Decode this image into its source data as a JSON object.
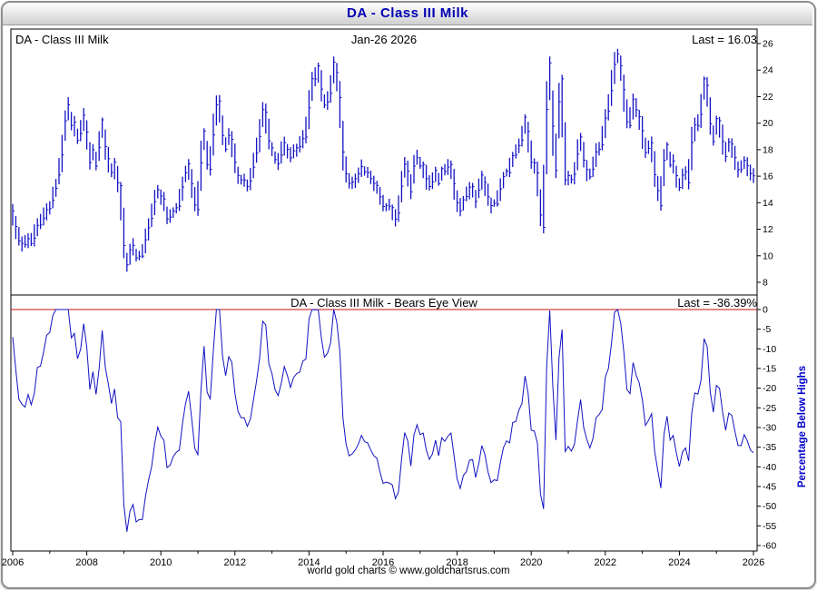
{
  "window": {
    "title": "DA  -  Class III Milk"
  },
  "panels": {
    "price": {
      "label": "DA  -  Class III Milk",
      "date": "Jan-26  2026",
      "last": "Last = 16.03"
    },
    "bears": {
      "title": "DA  -  Class III Milk - Bears Eye View",
      "last": "Last = -36.39%",
      "axis_label": "Percentage Below Highs"
    }
  },
  "footer": {
    "credit": "world gold charts © www.goldchartsrus.com"
  },
  "colors": {
    "series": "#1212c4",
    "zero_line": "#cc1111",
    "title_text": "#0000b4",
    "axis_text": "#000000",
    "frame": "#8f8f8f"
  },
  "chart_data": [
    {
      "type": "bar",
      "title": "DA - Class III Milk",
      "x_unit": "monthly",
      "x_start": 2006.0,
      "x_end": 2026.0,
      "ylim": [
        8,
        26
      ],
      "y_ticks": [
        26,
        24,
        22,
        20,
        18,
        16,
        14,
        12,
        10,
        8
      ],
      "x_ticks": [
        2006,
        2008,
        2010,
        2012,
        2014,
        2016,
        2018,
        2020,
        2022,
        2024,
        2026
      ],
      "last": 16.03,
      "legend_position": "none",
      "grid": false,
      "values": [
        13.39,
        12.2,
        11.11,
        10.93,
        10.83,
        11.29,
        10.92,
        11.33,
        12.29,
        12.32,
        12.84,
        13.47,
        13.56,
        14.18,
        15.09,
        16.09,
        17.6,
        20.17,
        21.38,
        19.83,
        20.07,
        18.7,
        19.22,
        20.6,
        19.32,
        17.03,
        18.0,
        16.76,
        18.18,
        20.25,
        18.24,
        17.32,
        16.28,
        17.06,
        15.51,
        15.28,
        10.78,
        9.31,
        10.44,
        10.78,
        9.84,
        9.97,
        9.97,
        11.2,
        12.11,
        12.82,
        14.08,
        14.98,
        14.5,
        14.28,
        12.78,
        12.92,
        13.38,
        13.62,
        13.74,
        15.18,
        16.26,
        16.94,
        15.44,
        13.83,
        13.48,
        17.0,
        19.4,
        16.87,
        16.52,
        19.11,
        21.39,
        21.67,
        19.07,
        18.03,
        19.07,
        18.77,
        17.05,
        16.06,
        15.72,
        15.72,
        15.23,
        15.63,
        16.68,
        17.73,
        19.0,
        21.02,
        20.83,
        18.66,
        18.14,
        17.25,
        16.93,
        17.59,
        18.52,
        18.02,
        17.38,
        17.91,
        18.14,
        18.22,
        18.83,
        18.95,
        21.15,
        23.35,
        23.33,
        24.31,
        22.57,
        21.36,
        21.6,
        22.25,
        24.6,
        23.82,
        21.94,
        17.82,
        16.18,
        15.46,
        15.56,
        15.81,
        16.19,
        16.72,
        16.33,
        16.27,
        15.82,
        15.46,
        15.3,
        14.44,
        13.72,
        13.8,
        13.74,
        13.63,
        12.76,
        13.22,
        15.24,
        16.91,
        16.39,
        14.82,
        16.76,
        17.4,
        16.77,
        16.88,
        15.81,
        15.22,
        15.57,
        16.44,
        15.45,
        16.57,
        16.36,
        16.69,
        16.88,
        15.44,
        14.0,
        13.4,
        14.22,
        14.47,
        15.18,
        15.21,
        14.1,
        14.95,
        16.09,
        15.53,
        14.44,
        13.78,
        13.96,
        13.89,
        15.04,
        15.96,
        16.38,
        16.27,
        17.55,
        17.6,
        18.31,
        18.72,
        20.45,
        19.37,
        17.05,
        17.0,
        16.25,
        13.07,
        12.14,
        21.04,
        24.54,
        19.77,
        16.43,
        21.61,
        23.34,
        15.72,
        16.04,
        15.75,
        16.15,
        17.67,
        18.96,
        17.21,
        16.49,
        15.95,
        16.53,
        17.83,
        18.03,
        18.36,
        20.38,
        20.91,
        22.45,
        24.42,
        25.21,
        24.33,
        22.52,
        20.1,
        19.82,
        21.81,
        21.01,
        20.5,
        19.43,
        17.78,
        18.1,
        18.52,
        16.11,
        14.91,
        13.77,
        17.19,
        18.39,
        16.84,
        17.15,
        16.04,
        15.15,
        16.08,
        16.34,
        15.5,
        18.55,
        19.87,
        19.79,
        20.66,
        23.34,
        22.85,
        19.95,
        18.62,
        20.34,
        20.18,
        18.62,
        17.48,
        18.57,
        18.42,
        17.4,
        16.5,
        16.5,
        17.2,
        16.8,
        16.2,
        16.03
      ]
    },
    {
      "type": "line",
      "title": "DA - Class III Milk - Bears Eye View",
      "x_unit": "monthly",
      "x_start": 2006.0,
      "x_end": 2026.0,
      "ylim": [
        -60,
        0
      ],
      "ylabel": "Percentage Below Highs",
      "y_ticks": [
        0,
        -5,
        -10,
        -15,
        -20,
        -25,
        -30,
        -35,
        -40,
        -45,
        -50,
        -55,
        -60
      ],
      "x_ticks": [
        2006,
        2008,
        2010,
        2012,
        2014,
        2016,
        2018,
        2020,
        2022,
        2024,
        2026
      ],
      "last_pct": -36.39,
      "zero_line": true,
      "grid": false,
      "values": [
        -7.0,
        -15.3,
        -22.8,
        -24.1,
        -24.8,
        -21.6,
        -24.2,
        -21.3,
        -14.7,
        -14.4,
        -10.8,
        -6.5,
        -5.8,
        -1.5,
        0.0,
        0.0,
        0.0,
        0.0,
        0.0,
        -7.2,
        -6.1,
        -12.5,
        -10.1,
        -3.6,
        -9.6,
        -20.3,
        -15.8,
        -21.6,
        -15.0,
        -5.3,
        -14.7,
        -19.0,
        -23.9,
        -20.2,
        -27.5,
        -28.5,
        -49.6,
        -56.5,
        -51.2,
        -49.6,
        -54.0,
        -53.4,
        -53.4,
        -47.6,
        -43.4,
        -40.0,
        -34.1,
        -29.9,
        -32.2,
        -33.2,
        -40.2,
        -39.6,
        -37.4,
        -36.3,
        -35.7,
        -29.0,
        -23.9,
        -20.8,
        -27.8,
        -35.3,
        -36.9,
        -20.5,
        -9.3,
        -21.1,
        -22.7,
        -10.6,
        0.0,
        0.0,
        -12.0,
        -16.8,
        -12.0,
        -13.4,
        -21.3,
        -25.9,
        -27.5,
        -27.5,
        -29.7,
        -27.9,
        -23.0,
        -18.2,
        -12.3,
        -3.0,
        -3.9,
        -13.9,
        -16.3,
        -20.4,
        -21.9,
        -18.8,
        -14.5,
        -16.8,
        -19.8,
        -17.3,
        -16.3,
        -15.9,
        -13.1,
        -12.6,
        -2.4,
        0.0,
        -0.1,
        0.0,
        -7.2,
        -12.1,
        -11.1,
        -8.5,
        0.0,
        -3.2,
        -10.8,
        -27.6,
        -34.2,
        -37.2,
        -36.7,
        -35.7,
        -34.2,
        -32.0,
        -33.6,
        -33.9,
        -35.7,
        -37.2,
        -37.8,
        -41.3,
        -44.2,
        -43.9,
        -44.1,
        -44.6,
        -48.1,
        -46.3,
        -38.0,
        -31.3,
        -33.4,
        -39.8,
        -31.9,
        -29.3,
        -31.8,
        -31.4,
        -35.7,
        -38.1,
        -36.7,
        -33.2,
        -37.2,
        -32.6,
        -33.5,
        -32.2,
        -31.4,
        -37.2,
        -43.1,
        -45.5,
        -42.2,
        -41.2,
        -38.3,
        -38.2,
        -42.7,
        -39.2,
        -34.6,
        -36.9,
        -41.3,
        -44.0,
        -43.3,
        -43.5,
        -38.9,
        -35.1,
        -33.4,
        -33.9,
        -28.7,
        -28.5,
        -25.6,
        -23.9,
        -16.9,
        -21.3,
        -30.7,
        -30.9,
        -33.9,
        -46.9,
        -50.7,
        -14.5,
        -0.2,
        -19.6,
        -33.2,
        -12.2,
        -5.1,
        -36.1,
        -34.8,
        -36.0,
        -34.3,
        -28.2,
        -22.9,
        -30.0,
        -33.0,
        -35.2,
        -32.8,
        -27.5,
        -26.7,
        -25.4,
        -17.2,
        -15.0,
        -8.7,
        -0.7,
        0.0,
        -3.5,
        -10.7,
        -20.3,
        -21.4,
        -13.5,
        -16.7,
        -18.7,
        -22.9,
        -29.5,
        -28.2,
        -26.5,
        -36.1,
        -40.9,
        -45.4,
        -31.8,
        -27.1,
        -33.2,
        -32.0,
        -36.4,
        -39.9,
        -36.2,
        -35.2,
        -38.5,
        -26.4,
        -21.2,
        -21.5,
        -18.0,
        -7.4,
        -9.4,
        -20.9,
        -26.1,
        -19.3,
        -20.0,
        -26.1,
        -30.7,
        -26.3,
        -26.9,
        -31.0,
        -34.6,
        -34.6,
        -31.8,
        -33.4,
        -35.7,
        -36.4
      ]
    }
  ]
}
